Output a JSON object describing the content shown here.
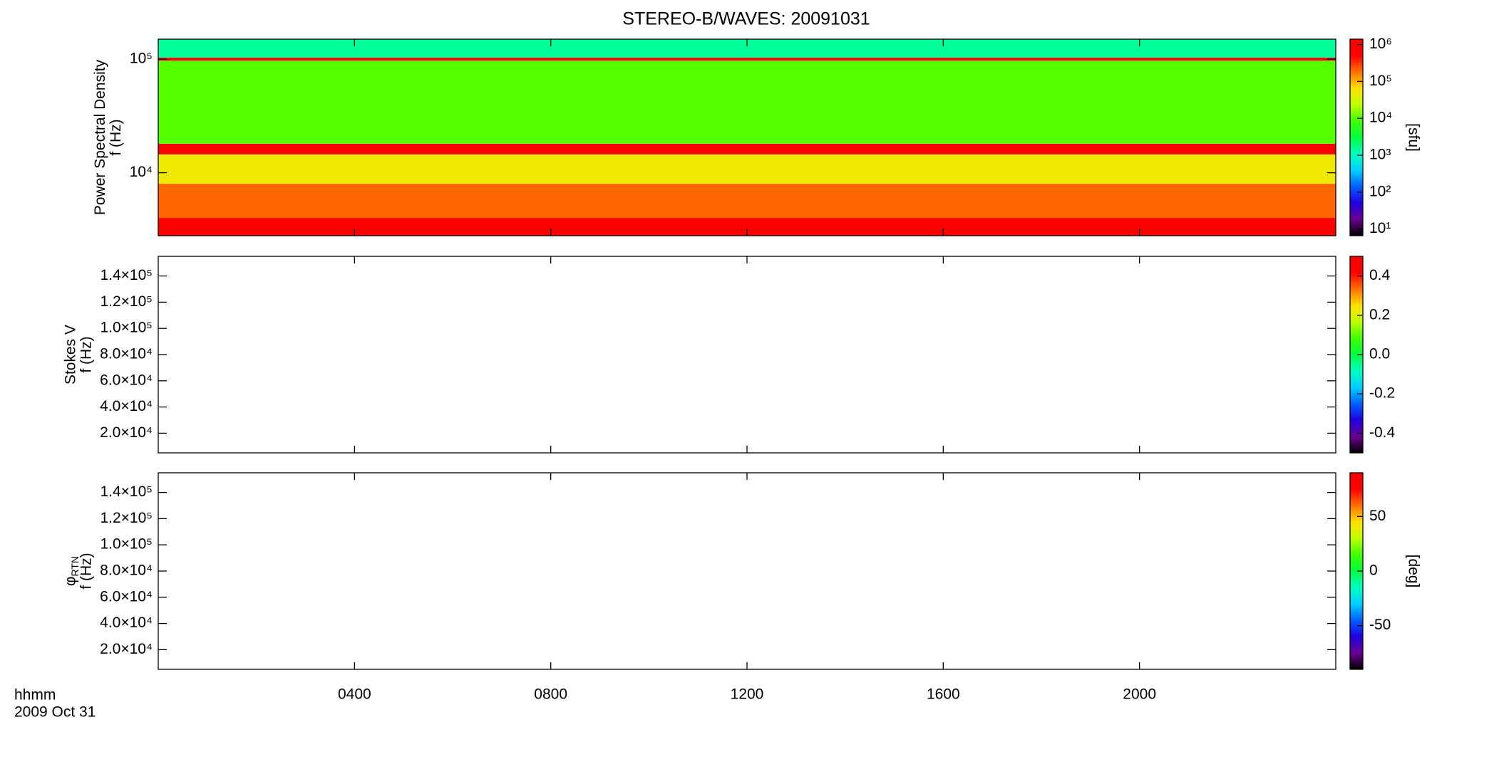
{
  "title": "STEREO-B/WAVES: 20091031",
  "x_axis": {
    "label": "hhmm",
    "date": "2009 Oct 31",
    "xlim": [
      0,
      24
    ],
    "xticks": [
      {
        "value": 4,
        "label": "0400"
      },
      {
        "value": 8,
        "label": "0800"
      },
      {
        "value": 12,
        "label": "1200"
      },
      {
        "value": 16,
        "label": "1600"
      },
      {
        "value": 20,
        "label": "2000"
      }
    ]
  },
  "colormap": [
    "#000000",
    "#6a0090",
    "#2000e0",
    "#0060ff",
    "#00d0ff",
    "#00ffc0",
    "#00ff40",
    "#40ff00",
    "#c0ff00",
    "#ffe000",
    "#ff7000",
    "#ff0000",
    "#ff0000"
  ],
  "chart_data": [
    {
      "type": "spectrogram",
      "ylabel": [
        "Power Spectral Density",
        "f (Hz)"
      ],
      "ylog": true,
      "ylim": [
        2790,
        150000
      ],
      "yticks": [
        {
          "value": 10000,
          "label": "10⁴"
        },
        {
          "value": 100000,
          "label": "10⁵"
        }
      ],
      "colorbar": {
        "log": true,
        "zlim": [
          6.6,
          1400000
        ],
        "ticks": [
          {
            "value": 10,
            "label": "10¹"
          },
          {
            "value": 100,
            "label": "10²"
          },
          {
            "value": 1000,
            "label": "10³"
          },
          {
            "value": 10000,
            "label": "10⁴"
          },
          {
            "value": 100000,
            "label": "10⁵"
          },
          {
            "value": 1000000,
            "label": "10⁶"
          }
        ],
        "label": "[sfu]"
      },
      "bands": {
        "edges": [
          2790,
          4000,
          8000,
          14500,
          18000,
          97000,
          103000,
          150000
        ],
        "values": [
          800000,
          200000,
          50000,
          1000000,
          10000,
          1000000,
          1500
        ]
      }
    },
    {
      "type": "spectrogram",
      "ylabel": [
        "Stokes V",
        "f (Hz)"
      ],
      "ylog": false,
      "ylim": [
        5000,
        155000
      ],
      "yticks": [
        {
          "value": 20000,
          "label": "2.0×10⁴"
        },
        {
          "value": 40000,
          "label": "4.0×10⁴"
        },
        {
          "value": 60000,
          "label": "6.0×10⁴"
        },
        {
          "value": 80000,
          "label": "8.0×10⁴"
        },
        {
          "value": 100000,
          "label": "1.0×10⁵"
        },
        {
          "value": 120000,
          "label": "1.2×10⁵"
        },
        {
          "value": 140000,
          "label": "1.4×10⁵"
        }
      ],
      "colorbar": {
        "log": false,
        "zlim": [
          -0.5,
          0.5
        ],
        "ticks": [
          -0.4,
          -0.2,
          {
            "value": 0,
            "label": "0.0"
          },
          0.2,
          0.4
        ]
      }
    },
    {
      "type": "spectrogram",
      "ylabel": [
        "φ",
        "f (Hz)"
      ],
      "ylabel_subscript": "RTN",
      "ylog": false,
      "ylim": [
        5000,
        155000
      ],
      "yticks": [
        {
          "value": 20000,
          "label": "2.0×10⁴"
        },
        {
          "value": 40000,
          "label": "4.0×10⁴"
        },
        {
          "value": 60000,
          "label": "6.0×10⁴"
        },
        {
          "value": 80000,
          "label": "8.0×10⁴"
        },
        {
          "value": 100000,
          "label": "1.0×10⁵"
        },
        {
          "value": 120000,
          "label": "1.2×10⁵"
        },
        {
          "value": 140000,
          "label": "1.4×10⁵"
        }
      ],
      "colorbar": {
        "log": false,
        "zlim": [
          -90,
          90
        ],
        "ticks": [
          -50,
          0,
          50
        ],
        "label": "[deg]"
      }
    }
  ]
}
